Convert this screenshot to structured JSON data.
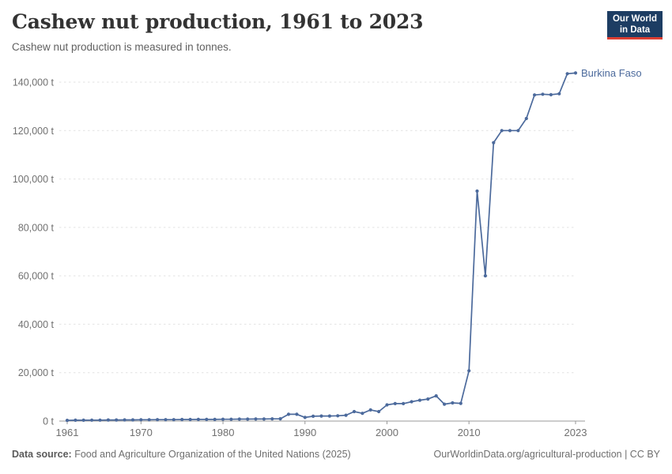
{
  "header": {
    "title": "Cashew nut production, 1961 to 2023",
    "subtitle": "Cashew nut production is measured in tonnes."
  },
  "logo": {
    "line1": "Our World",
    "line2": "in Data"
  },
  "colors": {
    "series": "#4c6a9c",
    "grid": "#e2e2e2",
    "axis": "#999999",
    "tick_text": "#707070",
    "logo_bg": "#1d3d63",
    "logo_red": "#dc3e32"
  },
  "chart_data": {
    "type": "line",
    "title": "Cashew nut production, 1961 to 2023",
    "subtitle": "Cashew nut production is measured in tonnes.",
    "xlabel": "",
    "ylabel": "tonnes",
    "xlim": [
      1961,
      2023
    ],
    "ylim": [
      0,
      140000
    ],
    "grid": "horizontal dashed",
    "legend_position": "end-of-line label",
    "x_ticks": [
      1961,
      1970,
      1980,
      1990,
      2000,
      2010,
      2023
    ],
    "y_ticks": [
      0,
      20000,
      40000,
      60000,
      80000,
      100000,
      120000,
      140000
    ],
    "y_tick_labels": [
      "0 t",
      "20,000 t",
      "40,000 t",
      "60,000 t",
      "80,000 t",
      "100,000 t",
      "120,000 t",
      "140,000 t"
    ],
    "series": [
      {
        "name": "Burkina Faso",
        "color": "#4c6a9c",
        "x": [
          1961,
          1962,
          1963,
          1964,
          1965,
          1966,
          1967,
          1968,
          1969,
          1970,
          1971,
          1972,
          1973,
          1974,
          1975,
          1976,
          1977,
          1978,
          1979,
          1980,
          1981,
          1982,
          1983,
          1984,
          1985,
          1986,
          1987,
          1988,
          1989,
          1990,
          1991,
          1992,
          1993,
          1994,
          1995,
          1996,
          1997,
          1998,
          1999,
          2000,
          2001,
          2002,
          2003,
          2004,
          2005,
          2006,
          2007,
          2008,
          2009,
          2010,
          2011,
          2012,
          2013,
          2014,
          2015,
          2016,
          2017,
          2018,
          2019,
          2020,
          2021,
          2022,
          2023
        ],
        "values": [
          300,
          350,
          350,
          400,
          400,
          450,
          450,
          500,
          500,
          550,
          550,
          600,
          600,
          600,
          650,
          650,
          700,
          700,
          700,
          750,
          750,
          800,
          800,
          850,
          850,
          900,
          950,
          2800,
          2800,
          1500,
          2000,
          2100,
          2100,
          2200,
          2400,
          3900,
          3200,
          4600,
          3900,
          6700,
          7200,
          7200,
          8000,
          8600,
          9100,
          10400,
          7000,
          7500,
          7300,
          20800,
          95000,
          60000,
          115000,
          120000,
          120000,
          120000,
          125000,
          134700,
          135000,
          134800,
          135200,
          143500,
          143800
        ]
      }
    ],
    "end_label": "Burkina Faso"
  },
  "footer": {
    "source_label": "Data source:",
    "source_text": " Food and Agriculture Organization of the United Nations (2025)",
    "right_text": "OurWorldinData.org/agricultural-production | CC BY"
  }
}
